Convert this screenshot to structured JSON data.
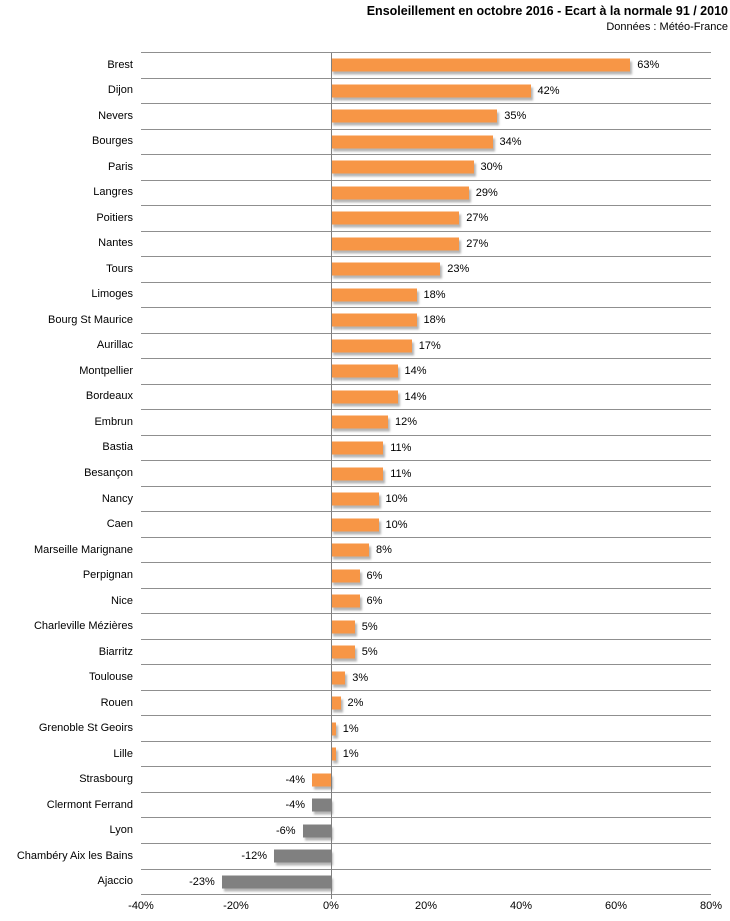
{
  "header": {
    "title": "Ensoleillement en octobre 2016 - Ecart à la normale 91 / 2010",
    "subtitle": "Données : Météo-France"
  },
  "chart_data": {
    "type": "bar",
    "orientation": "horizontal",
    "title": "Ensoleillement en octobre 2016 - Ecart à la normale 91 / 2010",
    "subtitle": "Données : Météo-France",
    "unit": "%",
    "xlabel": "",
    "ylabel": "",
    "xlim": [
      -40,
      80
    ],
    "x_ticks": [
      "-40%",
      "-20%",
      "0%",
      "20%",
      "40%",
      "60%",
      "80%"
    ],
    "grid": "horizontal category separator lines, vertical zero axis line, no legend",
    "legend": "none",
    "colors": {
      "positive_bar": "#F79646",
      "negative_bar": "#808080",
      "gridline": "#8f8f8f"
    },
    "cities": [
      {
        "name": "Brest",
        "value": 63,
        "label": "63%",
        "color": "#F79646"
      },
      {
        "name": "Dijon",
        "value": 42,
        "label": "42%",
        "color": "#F79646"
      },
      {
        "name": "Nevers",
        "value": 35,
        "label": "35%",
        "color": "#F79646"
      },
      {
        "name": "Bourges",
        "value": 34,
        "label": "34%",
        "color": "#F79646"
      },
      {
        "name": "Paris",
        "value": 30,
        "label": "30%",
        "color": "#F79646"
      },
      {
        "name": "Langres",
        "value": 29,
        "label": "29%",
        "color": "#F79646"
      },
      {
        "name": "Poitiers",
        "value": 27,
        "label": "27%",
        "color": "#F79646"
      },
      {
        "name": "Nantes",
        "value": 27,
        "label": "27%",
        "color": "#F79646"
      },
      {
        "name": "Tours",
        "value": 23,
        "label": "23%",
        "color": "#F79646"
      },
      {
        "name": "Limoges",
        "value": 18,
        "label": "18%",
        "color": "#F79646"
      },
      {
        "name": "Bourg St Maurice",
        "value": 18,
        "label": "18%",
        "color": "#F79646"
      },
      {
        "name": "Aurillac",
        "value": 17,
        "label": "17%",
        "color": "#F79646"
      },
      {
        "name": "Montpellier",
        "value": 14,
        "label": "14%",
        "color": "#F79646"
      },
      {
        "name": "Bordeaux",
        "value": 14,
        "label": "14%",
        "color": "#F79646"
      },
      {
        "name": "Embrun",
        "value": 12,
        "label": "12%",
        "color": "#F79646"
      },
      {
        "name": "Bastia",
        "value": 11,
        "label": "11%",
        "color": "#F79646"
      },
      {
        "name": "Besançon",
        "value": 11,
        "label": "11%",
        "color": "#F79646"
      },
      {
        "name": "Nancy",
        "value": 10,
        "label": "10%",
        "color": "#F79646"
      },
      {
        "name": "Caen",
        "value": 10,
        "label": "10%",
        "color": "#F79646"
      },
      {
        "name": "Marseille Marignane",
        "value": 8,
        "label": "8%",
        "color": "#F79646"
      },
      {
        "name": "Perpignan",
        "value": 6,
        "label": "6%",
        "color": "#F79646"
      },
      {
        "name": "Nice",
        "value": 6,
        "label": "6%",
        "color": "#F79646"
      },
      {
        "name": "Charleville Mézières",
        "value": 5,
        "label": "5%",
        "color": "#F79646"
      },
      {
        "name": "Biarritz",
        "value": 5,
        "label": "5%",
        "color": "#F79646"
      },
      {
        "name": "Toulouse",
        "value": 3,
        "label": "3%",
        "color": "#F79646"
      },
      {
        "name": "Rouen",
        "value": 2,
        "label": "2%",
        "color": "#F79646"
      },
      {
        "name": "Grenoble St Geoirs",
        "value": 1,
        "label": "1%",
        "color": "#F79646"
      },
      {
        "name": "Lille",
        "value": 1,
        "label": "1%",
        "color": "#F79646"
      },
      {
        "name": "Strasbourg",
        "value": -4,
        "label": "-4%",
        "color": "#F79646"
      },
      {
        "name": "Clermont Ferrand",
        "value": -4,
        "label": "-4%",
        "color": "#808080"
      },
      {
        "name": "Lyon",
        "value": -6,
        "label": "-6%",
        "color": "#808080"
      },
      {
        "name": "Chambéry Aix les Bains",
        "value": -12,
        "label": "-12%",
        "color": "#808080"
      },
      {
        "name": "Ajaccio",
        "value": -23,
        "label": "-23%",
        "color": "#808080"
      }
    ]
  }
}
